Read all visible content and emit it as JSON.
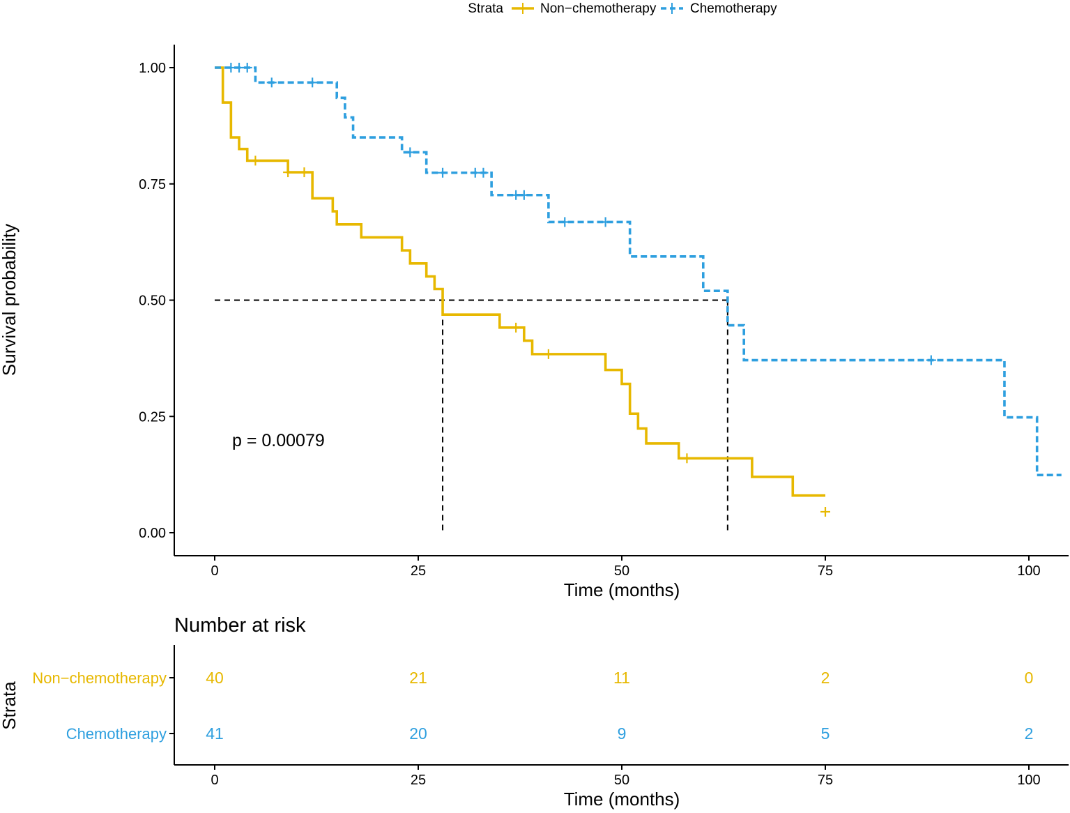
{
  "chart_data": {
    "type": "line",
    "subtype": "kaplan-meier",
    "legend": {
      "title": "Strata",
      "position": "top"
    },
    "main_plot": {
      "xlabel": "Time (months)",
      "ylabel": "Survival probability",
      "xlim": [
        0,
        104
      ],
      "ylim": [
        0,
        1
      ],
      "x_ticks": [
        0,
        25,
        50,
        75,
        100
      ],
      "y_ticks": [
        0.0,
        0.25,
        0.5,
        0.75,
        1.0
      ],
      "y_tick_labels": [
        "0.00",
        "0.25",
        "0.50",
        "0.75",
        "1.00"
      ],
      "pvalue_text": "p = 0.00079",
      "median_line": {
        "y": 0.5,
        "medians": [
          28,
          63
        ]
      }
    },
    "series": [
      {
        "name": "Non−chemotherapy",
        "color": "#E7B800",
        "dash": "solid",
        "steps": [
          [
            0,
            1.0
          ],
          [
            1,
            0.925
          ],
          [
            2,
            0.85
          ],
          [
            3,
            0.825
          ],
          [
            4,
            0.8
          ],
          [
            9,
            0.775
          ],
          [
            12,
            0.719
          ],
          [
            14.5,
            0.691
          ],
          [
            15,
            0.663
          ],
          [
            18,
            0.635
          ],
          [
            23,
            0.607
          ],
          [
            24,
            0.579
          ],
          [
            26,
            0.551
          ],
          [
            27,
            0.524
          ],
          [
            28,
            0.469
          ],
          [
            35,
            0.441
          ],
          [
            38,
            0.413
          ],
          [
            39,
            0.384
          ],
          [
            48,
            0.35
          ],
          [
            50,
            0.32
          ],
          [
            51,
            0.256
          ],
          [
            52,
            0.224
          ],
          [
            53,
            0.192
          ],
          [
            57,
            0.16
          ],
          [
            66,
            0.12
          ],
          [
            71,
            0.08
          ]
        ],
        "end_x": 75,
        "censor": [
          [
            5,
            0.8
          ],
          [
            9,
            0.775
          ],
          [
            11,
            0.775
          ],
          [
            37,
            0.441
          ],
          [
            41,
            0.384
          ],
          [
            58,
            0.16
          ],
          [
            75,
            0.045
          ]
        ]
      },
      {
        "name": "Chemotherapy",
        "color": "#2E9FDF",
        "dash": "dashed",
        "steps": [
          [
            0,
            1.0
          ],
          [
            5,
            0.968
          ],
          [
            15,
            0.935
          ],
          [
            16,
            0.893
          ],
          [
            17,
            0.85
          ],
          [
            23,
            0.818
          ],
          [
            26,
            0.774
          ],
          [
            34,
            0.726
          ],
          [
            41,
            0.668
          ],
          [
            51,
            0.594
          ],
          [
            60,
            0.52
          ],
          [
            63,
            0.446
          ],
          [
            65,
            0.371
          ],
          [
            97,
            0.248
          ],
          [
            101,
            0.124
          ]
        ],
        "end_x": 104,
        "censor": [
          [
            2,
            1.0
          ],
          [
            3,
            1.0
          ],
          [
            4,
            1.0
          ],
          [
            7,
            0.968
          ],
          [
            12,
            0.968
          ],
          [
            24,
            0.818
          ],
          [
            28,
            0.774
          ],
          [
            32,
            0.774
          ],
          [
            33,
            0.774
          ],
          [
            37,
            0.726
          ],
          [
            38,
            0.726
          ],
          [
            43,
            0.668
          ],
          [
            48,
            0.668
          ],
          [
            88,
            0.371
          ]
        ]
      }
    ],
    "risk_table": {
      "title": "Number at risk",
      "ylabel": "Strata",
      "xlabel": "Time (months)",
      "times": [
        0,
        25,
        50,
        75,
        100
      ],
      "rows": [
        {
          "name": "Non−chemotherapy",
          "values": [
            "40",
            "21",
            "11",
            "2",
            "0"
          ]
        },
        {
          "name": "Chemotherapy",
          "values": [
            "41",
            "20",
            "9",
            "5",
            "2"
          ]
        }
      ]
    }
  }
}
